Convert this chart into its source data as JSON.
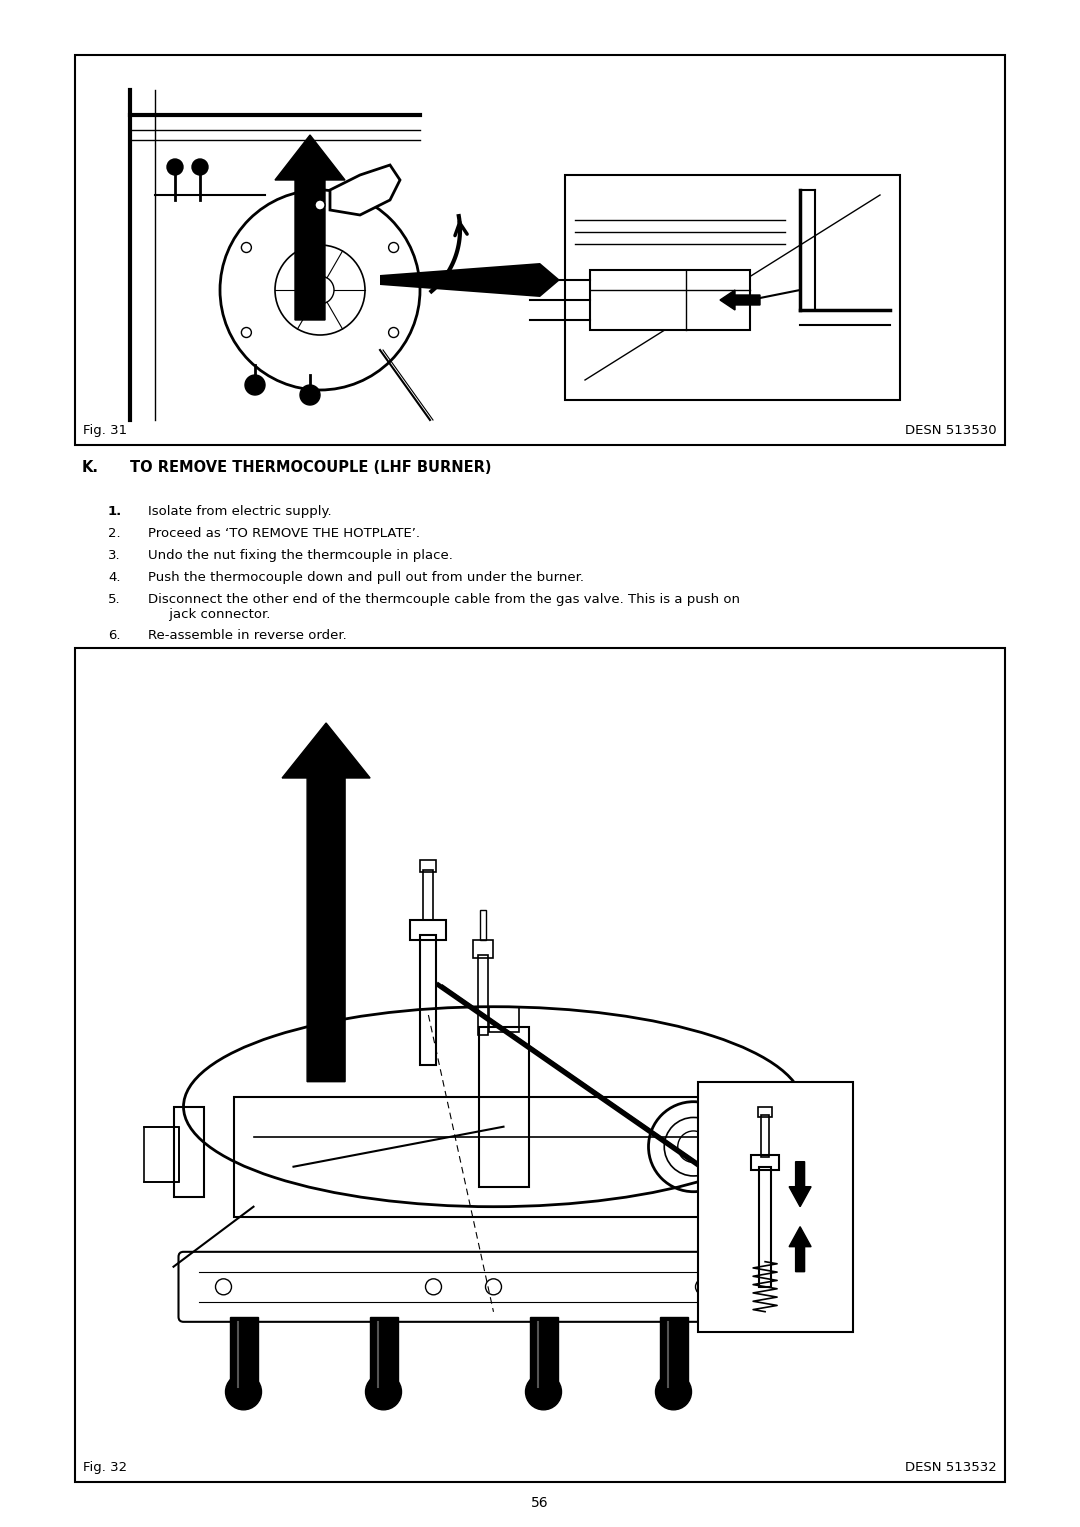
{
  "page_bg": "#ffffff",
  "margin_color": "#ffffff",
  "fig1_label": "Fig. 31",
  "fig1_ref": "DESN 513530",
  "fig2_label": "Fig. 32",
  "fig2_ref": "DESN 513532",
  "section_letter": "K.",
  "section_title": "TO REMOVE THERMOCOUPLE (LHF BURNER)",
  "instructions": [
    [
      "1.",
      "Isolate from electric supply."
    ],
    [
      "2.",
      "Proceed as ‘TO REMOVE THE HOTPLATE’."
    ],
    [
      "3.",
      "Undo the nut fixing the thermcouple in place."
    ],
    [
      "4.",
      "Push the thermocouple down and pull out from under the burner."
    ],
    [
      "5.",
      "Disconnect the other end of the thermcouple cable from the gas valve. This is a push on\n     jack connector."
    ],
    [
      "6.",
      "Re-assemble in reverse order."
    ]
  ],
  "page_number": "56",
  "box_border": "#000000",
  "text_color": "#000000",
  "label_fontsize": 9.5,
  "heading_fontsize": 10.5,
  "body_fontsize": 9.5
}
